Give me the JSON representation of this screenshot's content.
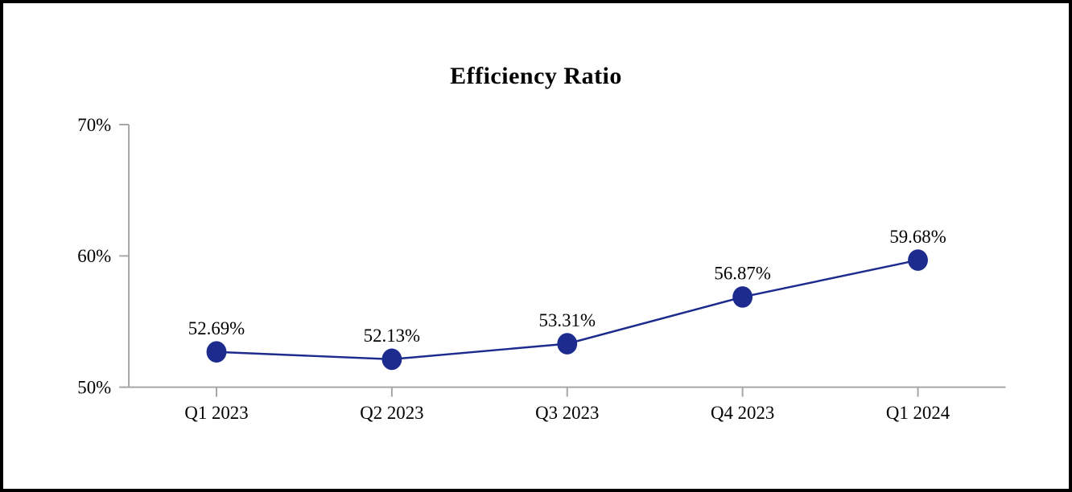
{
  "page": {
    "background_color": "#ffffff",
    "border_color": "#000000"
  },
  "chart_data": {
    "type": "line",
    "title": "Efficiency Ratio",
    "categories": [
      "Q1 2023",
      "Q2 2023",
      "Q3 2023",
      "Q4 2023",
      "Q1 2024"
    ],
    "series": [
      {
        "name": "Efficiency Ratio",
        "values": [
          52.69,
          52.13,
          53.31,
          56.87,
          59.68
        ]
      }
    ],
    "data_labels": [
      "52.69%",
      "52.13%",
      "53.31%",
      "56.87%",
      "59.68%"
    ],
    "y_ticks": [
      {
        "value": 50,
        "label": "50%"
      },
      {
        "value": 60,
        "label": "60%"
      },
      {
        "value": 70,
        "label": "70%"
      }
    ],
    "ylim": [
      50,
      70
    ],
    "xlabel": "",
    "ylabel": "",
    "grid": false,
    "legend_position": "none",
    "line_color": "#1c2b8d",
    "marker_color": "#1c2b8d",
    "axis_color": "#a6a6a6",
    "text_color": "#000000"
  }
}
